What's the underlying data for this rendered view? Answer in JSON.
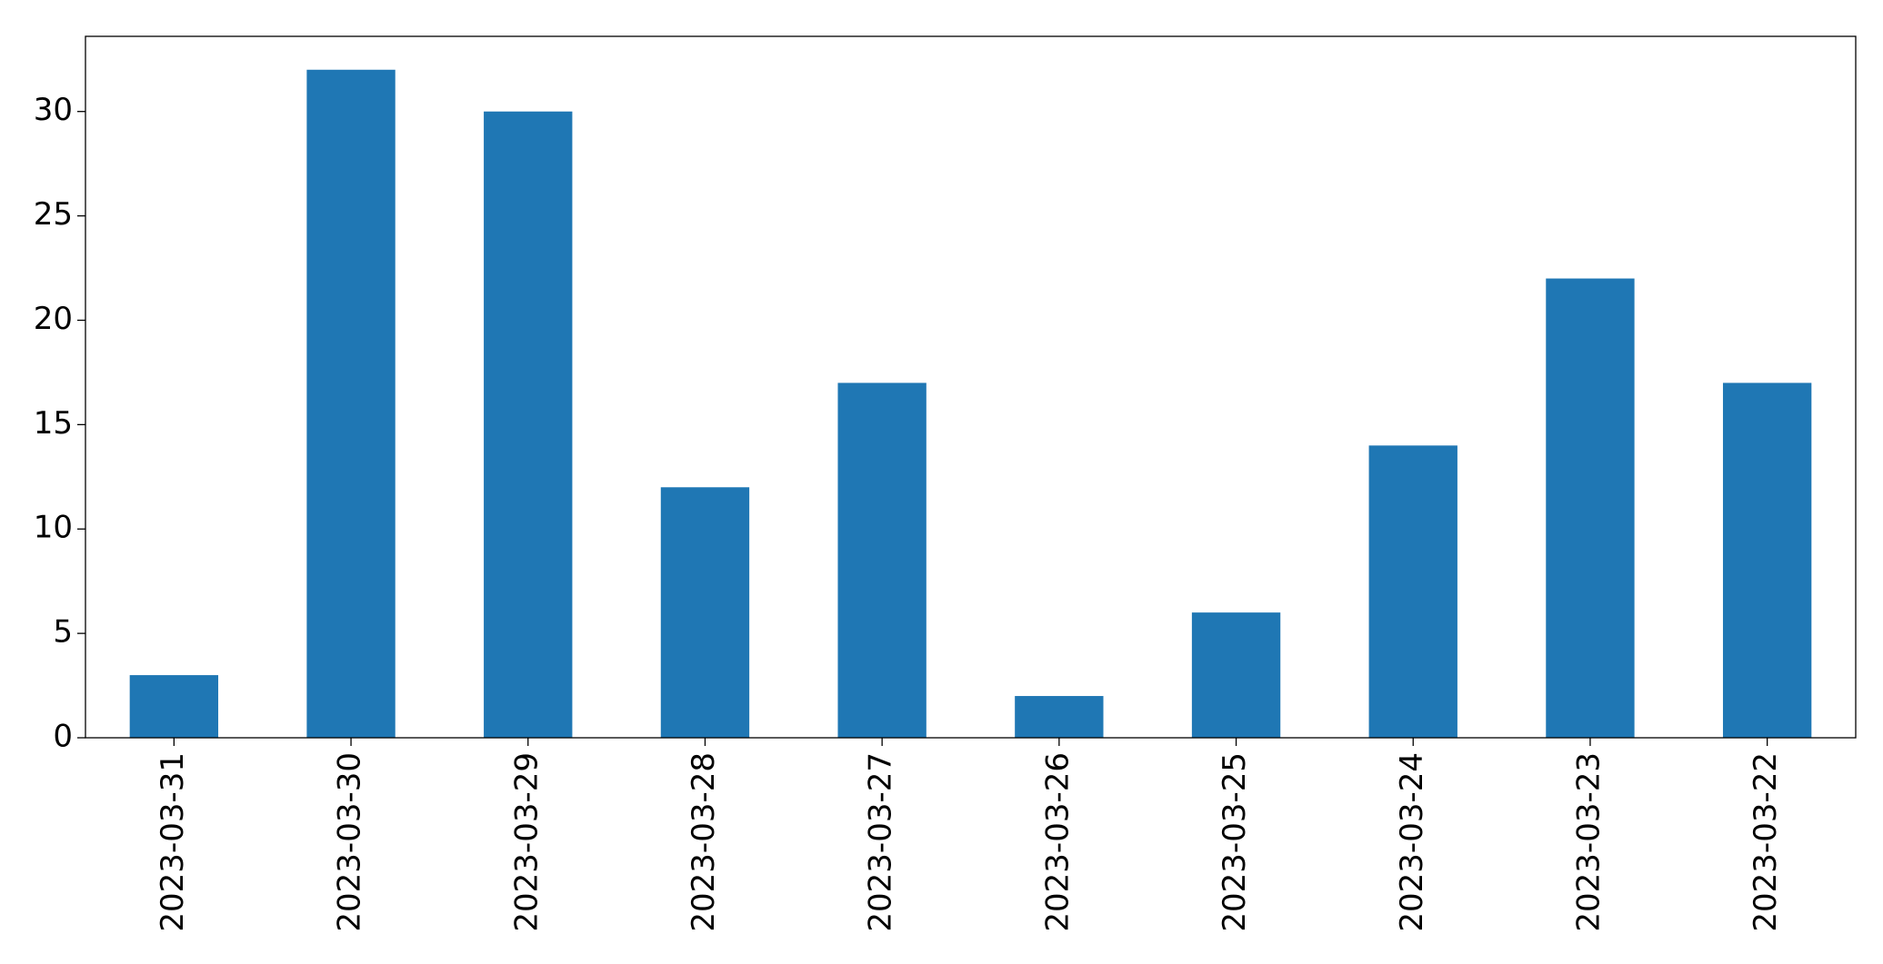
{
  "chart_data": {
    "type": "bar",
    "categories": [
      "2023-03-31",
      "2023-03-30",
      "2023-03-29",
      "2023-03-28",
      "2023-03-27",
      "2023-03-26",
      "2023-03-25",
      "2023-03-24",
      "2023-03-23",
      "2023-03-22"
    ],
    "values": [
      3,
      32,
      30,
      12,
      17,
      2,
      6,
      14,
      22,
      17
    ],
    "color": "#1f77b4",
    "ylim": [
      0,
      33.6
    ],
    "yticks": [
      0,
      5,
      10,
      15,
      20,
      25,
      30
    ],
    "grid": false
  }
}
